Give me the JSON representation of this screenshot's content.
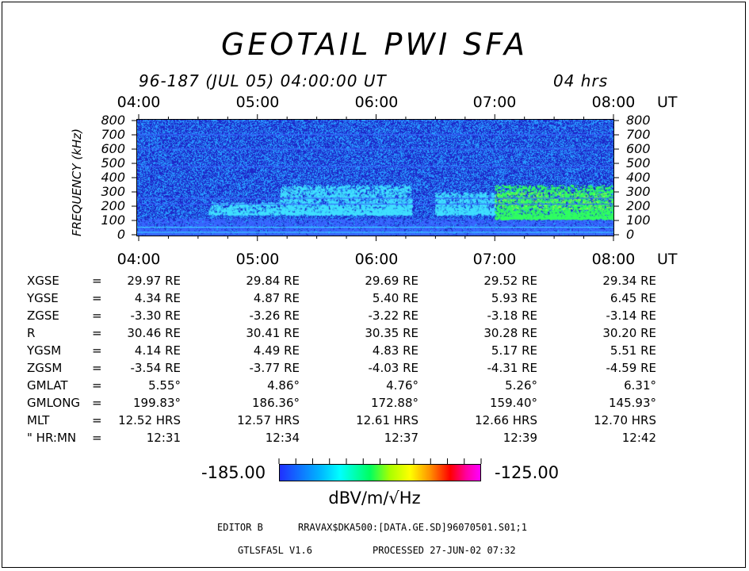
{
  "title": "GEOTAIL PWI SFA",
  "subtitle_left": "96-187 (JUL 05) 04:00:00 UT",
  "subtitle_right": "04 hrs",
  "time_unit": "UT",
  "colors": {
    "background": "#2020c8",
    "noise_light": "#3a66ff",
    "cyan": "#40e0ff",
    "green": "#30ff60",
    "lime": "#a0ff40"
  },
  "chart_data": {
    "type": "heatmap",
    "title": "GEOTAIL PWI SFA",
    "x_ticks": [
      "04:00",
      "05:00",
      "06:00",
      "07:00",
      "08:00"
    ],
    "xlabel": "UT",
    "ylabel": "FREQUENCY (kHz)",
    "ylim": [
      0,
      800
    ],
    "y_ticks": [
      800,
      700,
      600,
      500,
      400,
      300,
      200,
      100,
      0
    ],
    "colorbar": {
      "min": "-185.00",
      "max": "-125.00",
      "unit": "dBV/m/√Hz"
    },
    "features": [
      {
        "hours": [
          4.0,
          8.0
        ],
        "freq_khz": [
          0,
          120
        ],
        "level": "bright noise band"
      },
      {
        "hours": [
          4.6,
          5.2
        ],
        "freq_khz": [
          150,
          230
        ],
        "level": "cyan"
      },
      {
        "hours": [
          5.2,
          6.3
        ],
        "freq_khz": [
          150,
          350
        ],
        "level": "cyan"
      },
      {
        "hours": [
          6.5,
          7.0
        ],
        "freq_khz": [
          150,
          300
        ],
        "level": "cyan"
      },
      {
        "hours": [
          7.0,
          8.0
        ],
        "freq_khz": [
          120,
          350
        ],
        "level": "green"
      }
    ]
  },
  "orbit": {
    "rows": [
      {
        "label": "XGSE",
        "values": [
          "29.97 RE",
          "29.84 RE",
          "29.69 RE",
          "29.52 RE",
          "29.34 RE"
        ]
      },
      {
        "label": "YGSE",
        "values": [
          "4.34 RE",
          "4.87 RE",
          "5.40 RE",
          "5.93 RE",
          "6.45 RE"
        ]
      },
      {
        "label": "ZGSE",
        "values": [
          "-3.30 RE",
          "-3.26 RE",
          "-3.22 RE",
          "-3.18 RE",
          "-3.14 RE"
        ]
      },
      {
        "label": "R",
        "values": [
          "30.46 RE",
          "30.41 RE",
          "30.35 RE",
          "30.28 RE",
          "30.20 RE"
        ]
      },
      {
        "label": "YGSM",
        "values": [
          "4.14 RE",
          "4.49 RE",
          "4.83 RE",
          "5.17 RE",
          "5.51 RE"
        ]
      },
      {
        "label": "ZGSM",
        "values": [
          "-3.54 RE",
          "-3.77 RE",
          "-4.03 RE",
          "-4.31 RE",
          "-4.59 RE"
        ]
      },
      {
        "label": "GMLAT",
        "values": [
          "5.55°",
          "4.86°",
          "4.76°",
          "5.26°",
          "6.31°"
        ]
      },
      {
        "label": "GMLONG",
        "values": [
          "199.83°",
          "186.36°",
          "172.88°",
          "159.40°",
          "145.93°"
        ]
      },
      {
        "label": "MLT",
        "values": [
          "12.52 HRS",
          "12.57 HRS",
          "12.61 HRS",
          "12.66 HRS",
          "12.70 HRS"
        ]
      },
      {
        "label": "\" HR:MN",
        "values": [
          "12:31",
          "12:34",
          "12:37",
          "12:39",
          "12:42"
        ]
      }
    ],
    "equals": "="
  },
  "footer": {
    "editor": "EDITOR B",
    "path": "RRAVAX$DKA500:[DATA.GE.SD]96070501.S01;1",
    "version": "GTLSFA5L V1.6",
    "processed": "PROCESSED 27-JUN-02  07:32"
  }
}
